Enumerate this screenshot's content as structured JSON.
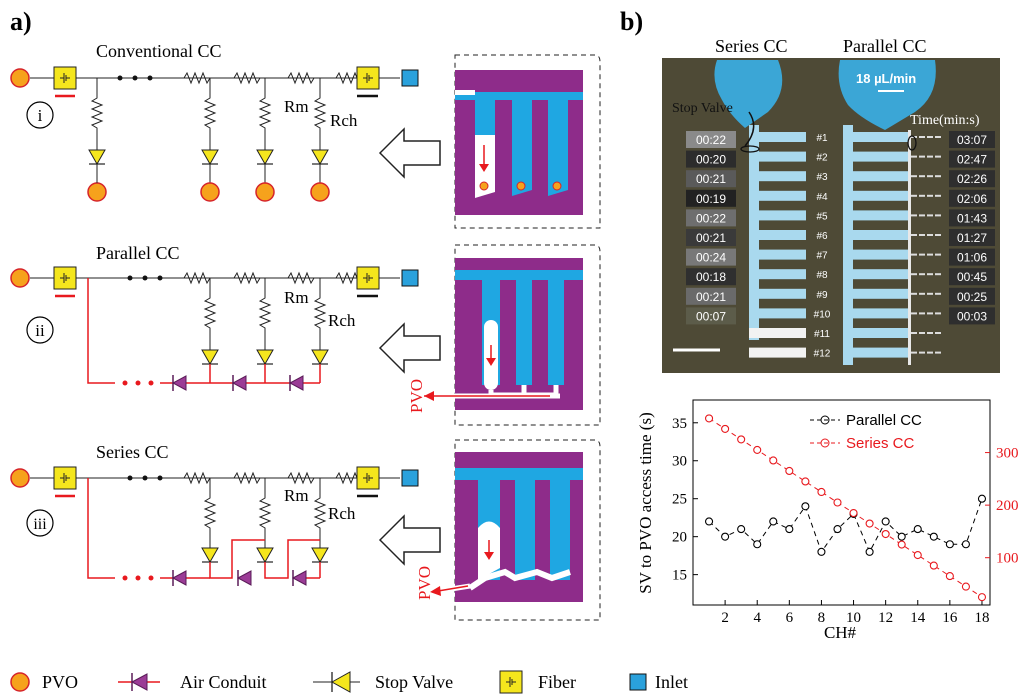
{
  "panel_a": {
    "label": "a)",
    "rows": [
      {
        "roman": "i",
        "title": "Conventional CC"
      },
      {
        "roman": "ii",
        "title": "Parallel CC"
      },
      {
        "roman": "iii",
        "title": "Series CC"
      }
    ],
    "rm_label": "Rm",
    "rch_label": "Rch",
    "pvo_label": "PVO"
  },
  "panel_b": {
    "label": "b)",
    "photo": {
      "series_title": "Series CC",
      "parallel_title": "Parallel CC",
      "flow_rate": "18 µL/min",
      "stop_valve": "Stop Valve",
      "time_header": "Time(min:s)",
      "series_times": [
        "00:22",
        "00:20",
        "00:21",
        "00:19",
        "00:22",
        "00:21",
        "00:24",
        "00:18",
        "00:21",
        "00:07"
      ],
      "parallel_times": [
        "03:07",
        "02:47",
        "02:26",
        "02:06",
        "01:43",
        "01:27",
        "01:06",
        "00:45",
        "00:25",
        "00:03"
      ],
      "channel_ids": [
        "#1",
        "#2",
        "#3",
        "#4",
        "#5",
        "#6",
        "#7",
        "#8",
        "#9",
        "#10",
        "#11",
        "#12"
      ]
    }
  },
  "chart_data": {
    "type": "line",
    "xlabel": "CH#",
    "ylabel": "SV to PVO access time (s)",
    "xlim": [
      0,
      18.5
    ],
    "ylim_left": [
      11,
      38
    ],
    "ylim_right": [
      10,
      400
    ],
    "xticks": [
      2,
      4,
      6,
      8,
      10,
      12,
      14,
      16,
      18
    ],
    "yticks_left": [
      15,
      20,
      25,
      30,
      35
    ],
    "yticks_right": [
      100,
      200,
      300
    ],
    "legend_position": "top-right",
    "series": [
      {
        "name": "Parallel CC",
        "axis": "left",
        "color": "#000000",
        "x": [
          1,
          2,
          3,
          4,
          5,
          6,
          7,
          8,
          9,
          10,
          11,
          12,
          13,
          14,
          15,
          16,
          17,
          18
        ],
        "y": [
          22,
          20,
          21,
          19,
          22,
          21,
          24,
          18,
          21,
          23,
          18,
          22,
          20,
          21,
          20,
          19,
          19,
          25
        ]
      },
      {
        "name": "Series CC",
        "axis": "right",
        "color": "#e8191e",
        "x": [
          1,
          2,
          3,
          4,
          5,
          6,
          7,
          8,
          9,
          10,
          11,
          12,
          13,
          14,
          15,
          16,
          17,
          18
        ],
        "y": [
          365,
          345,
          325,
          305,
          285,
          265,
          245,
          225,
          205,
          185,
          165,
          145,
          125,
          105,
          85,
          65,
          45,
          25
        ]
      }
    ]
  },
  "legend": {
    "items": [
      {
        "icon": "pvo-circle-icon",
        "label": "PVO"
      },
      {
        "icon": "air-conduit-icon",
        "label": "Air Conduit"
      },
      {
        "icon": "stop-valve-icon",
        "label": "Stop Valve"
      },
      {
        "icon": "fiber-icon",
        "label": "Fiber"
      },
      {
        "icon": "inlet-icon",
        "label": "Inlet"
      }
    ]
  },
  "colors": {
    "pvo": "#f6a21c",
    "pvo_stroke": "#d6242a",
    "fiber": "#f5e61d",
    "inlet": "#2aa1dc",
    "valve": "#f5e61d",
    "conduit": "#9b3c96",
    "red": "#e8191e",
    "purple": "#8e2c8a",
    "blue": "#1fa7e2"
  }
}
